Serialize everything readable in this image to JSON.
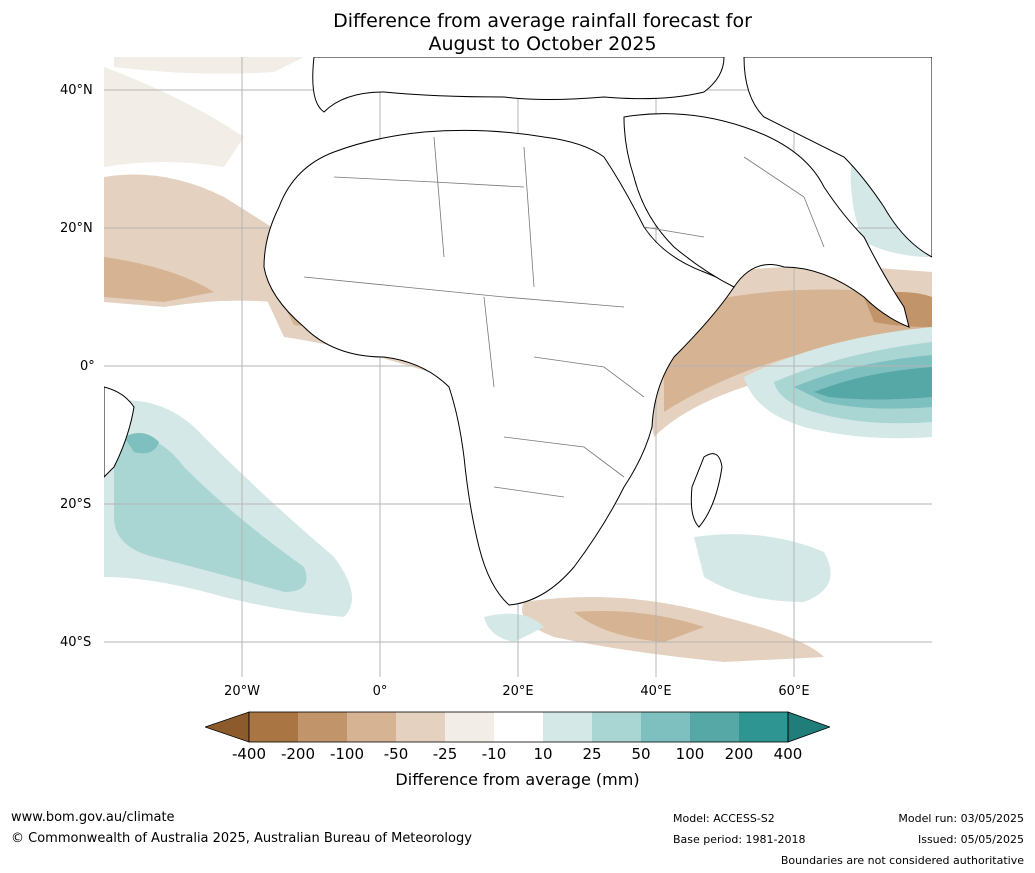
{
  "title_line1": "Difference from average rainfall forecast for",
  "title_line2": "August to October 2025",
  "lat_ticks": [
    "40°N",
    "20°N",
    "0°",
    "20°S",
    "40°S"
  ],
  "lon_ticks": [
    "20°W",
    "0°",
    "20°E",
    "40°E",
    "60°E"
  ],
  "legend": {
    "title": "Difference from average (mm)",
    "labels": [
      "-400",
      "-200",
      "-100",
      "-50",
      "-25",
      "-10",
      "10",
      "25",
      "50",
      "100",
      "200",
      "400"
    ],
    "colors": [
      "#8c5a2b",
      "#a97543",
      "#c19469",
      "#d5b393",
      "#e4d1bf",
      "#f2ede7",
      "#ffffff",
      "#d4e9e7",
      "#a9d5d3",
      "#7ec0bf",
      "#56a8a7",
      "#2f9592",
      "#1f7d7a"
    ]
  },
  "footer": {
    "website": "www.bom.gov.au/climate",
    "copyright": "© Commonwealth of Australia 2025, Australian Bureau of Meteorology",
    "model": "Model: ACCESS-S2",
    "base_period": "Base period: 1981-2018",
    "model_run": "Model run: 03/05/2025",
    "issued": "Issued: 05/05/2025",
    "disclaimer": "Boundaries are not considered authoritative"
  }
}
